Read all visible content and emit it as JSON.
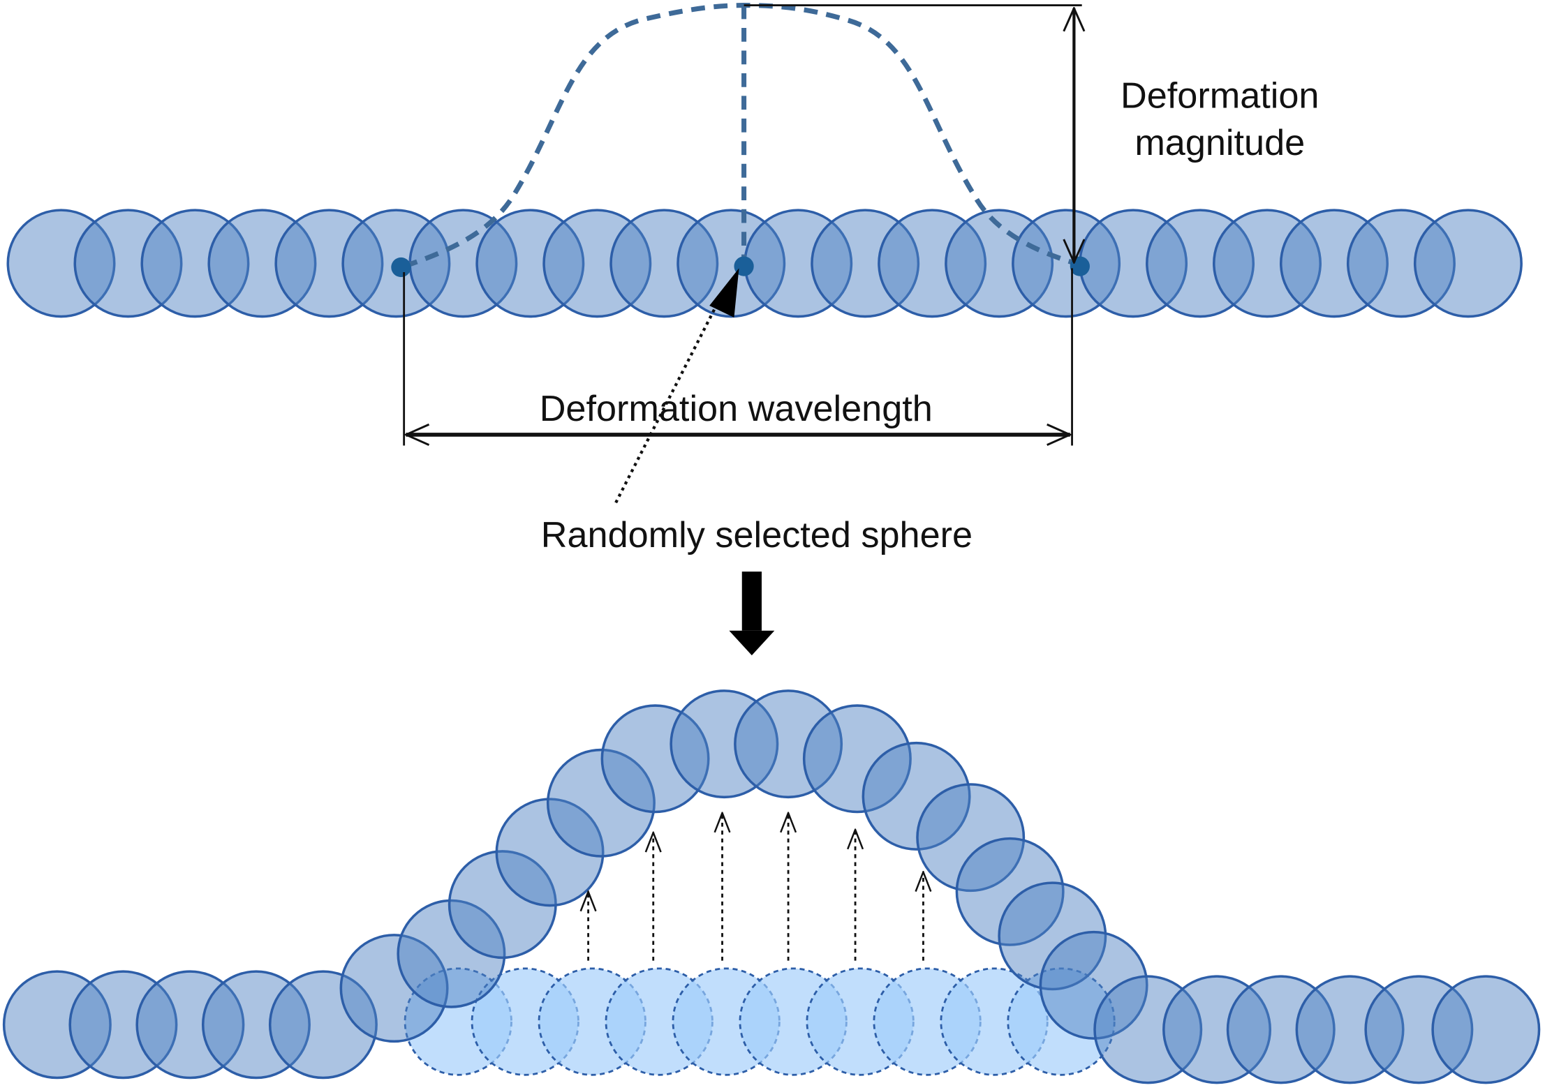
{
  "labels": {
    "magnitude": [
      "Deformation",
      "magnitude"
    ],
    "wavelength": "Deformation wavelength",
    "selected": "Randomly selected sphere"
  }
}
